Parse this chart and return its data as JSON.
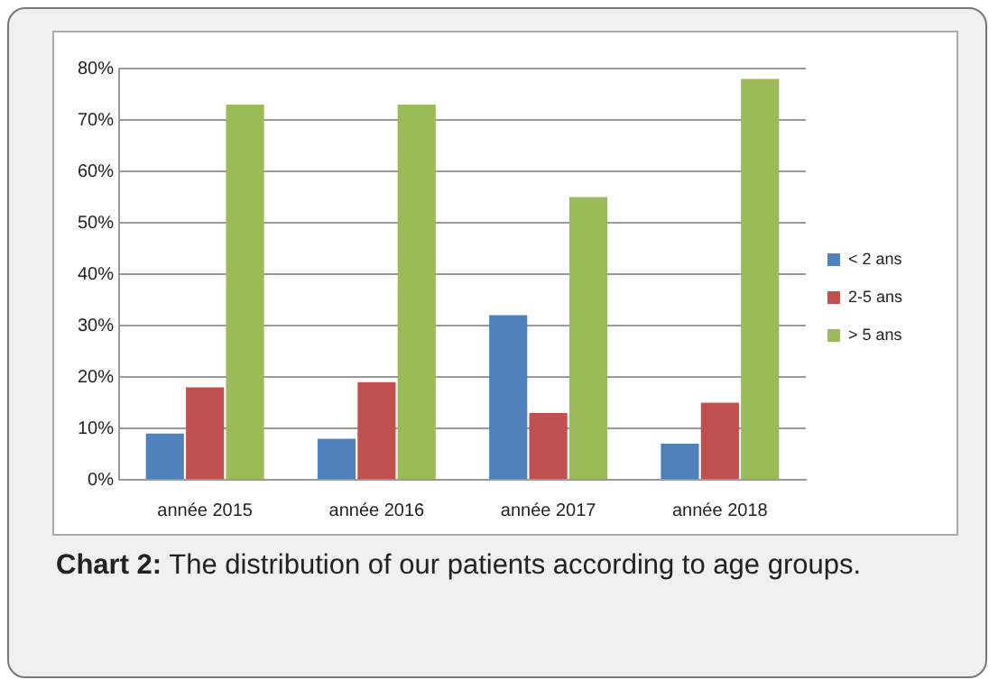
{
  "chart_data": {
    "type": "bar",
    "categories": [
      "année 2015",
      "année 2016",
      "année 2017",
      "année 2018"
    ],
    "series": [
      {
        "name": "< 2 ans",
        "color": "#4f81bd",
        "values": [
          9,
          8,
          32,
          7
        ]
      },
      {
        "name": "2-5 ans",
        "color": "#c0504d",
        "values": [
          18,
          19,
          13,
          15
        ]
      },
      {
        "name": "> 5 ans",
        "color": "#9bbb59",
        "values": [
          73,
          73,
          55,
          78
        ]
      }
    ],
    "ylim": [
      0,
      80
    ],
    "yticks": [
      {
        "value": 0,
        "label": "0%"
      },
      {
        "value": 10,
        "label": "10%"
      },
      {
        "value": 20,
        "label": "20%"
      },
      {
        "value": 30,
        "label": "30%"
      },
      {
        "value": 40,
        "label": "40%"
      },
      {
        "value": 50,
        "label": "50%"
      },
      {
        "value": 60,
        "label": "60%"
      },
      {
        "value": 70,
        "label": "70%"
      },
      {
        "value": 80,
        "label": "80%"
      }
    ],
    "grid": "y",
    "legend": "right",
    "annotations": [
      "Chart 2: The distribution of our patients according to age groups."
    ]
  }
}
